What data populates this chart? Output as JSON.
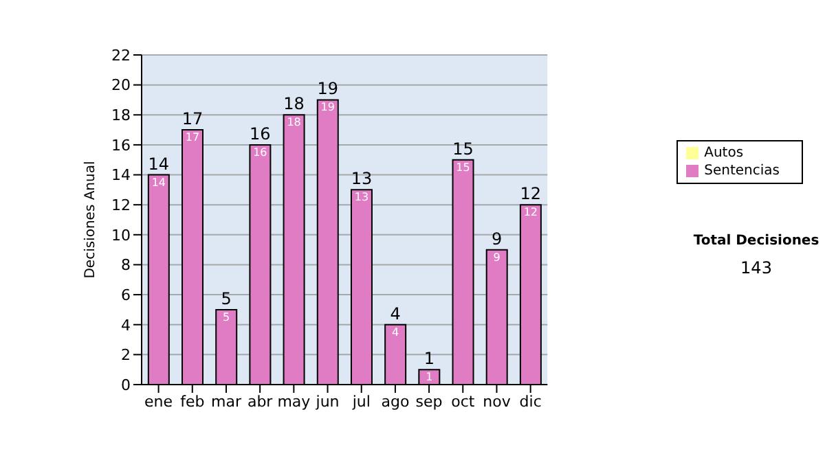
{
  "chart_data": {
    "type": "bar",
    "ylabel": "Decisiones Anual",
    "categories": [
      "ene",
      "feb",
      "mar",
      "abr",
      "may",
      "jun",
      "jul",
      "ago",
      "sep",
      "oct",
      "nov",
      "dic"
    ],
    "series": [
      {
        "name": "Sentencias",
        "color": "#e07cc4",
        "values": [
          14,
          17,
          5,
          16,
          18,
          19,
          13,
          4,
          1,
          15,
          9,
          12
        ],
        "value_labels": [
          "14",
          "17",
          "5",
          "16",
          "18",
          "19",
          "13",
          "4",
          "1",
          "15",
          "9",
          "12"
        ]
      },
      {
        "name": "Autos",
        "color": "#ffff99",
        "values": [
          null,
          null,
          null,
          null,
          null,
          null,
          null,
          null,
          null,
          null,
          null,
          null
        ]
      }
    ],
    "stacked": true,
    "totals": [
      "14",
      "17",
      "5",
      "16",
      "18",
      "19",
      "13",
      "4",
      "1",
      "15",
      "9",
      "12"
    ],
    "ylim": [
      0,
      22
    ],
    "yticks": [
      0,
      2,
      4,
      6,
      8,
      10,
      12,
      14,
      16,
      18,
      20,
      22
    ],
    "grid": "y",
    "legend": "right",
    "annotations": [
      "Total Decisiones",
      "143"
    ]
  }
}
